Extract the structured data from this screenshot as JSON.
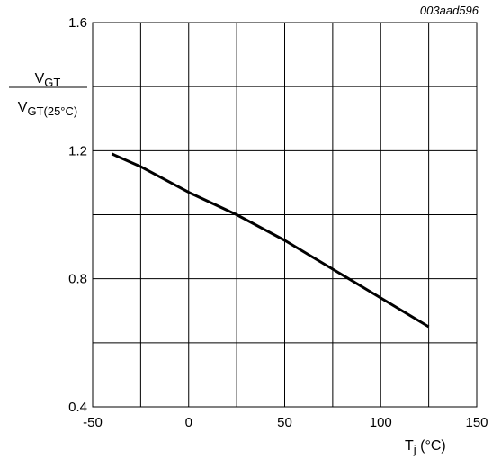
{
  "figure_code": "003aad596",
  "chart_data": {
    "type": "line",
    "xlabel": {
      "main": "T",
      "sub": "j",
      "unit": " (°C)"
    },
    "ylabel": {
      "numerator": {
        "main": "V",
        "sub": "GT"
      },
      "denominator": {
        "main": "V",
        "sub": "GT(25°C)"
      }
    },
    "xlim": [
      -50,
      150
    ],
    "ylim": [
      0.4,
      1.6
    ],
    "x_ticks": [
      -50,
      0,
      50,
      100,
      150
    ],
    "x_tick_labels": [
      "-50",
      "0",
      "50",
      "100",
      "150"
    ],
    "y_ticks": [
      0.4,
      0.8,
      1.2,
      1.6
    ],
    "y_tick_labels": [
      "0.4",
      "0.8",
      "1.2",
      "1.6"
    ],
    "x_grid_step": 25,
    "y_grid_step": 0.2,
    "grid": true,
    "series": [
      {
        "color": "#000000",
        "x": [
          -40,
          -25,
          0,
          25,
          50,
          75,
          100,
          125
        ],
        "y": [
          1.19,
          1.15,
          1.07,
          1.0,
          0.92,
          0.83,
          0.74,
          0.65
        ]
      }
    ]
  }
}
